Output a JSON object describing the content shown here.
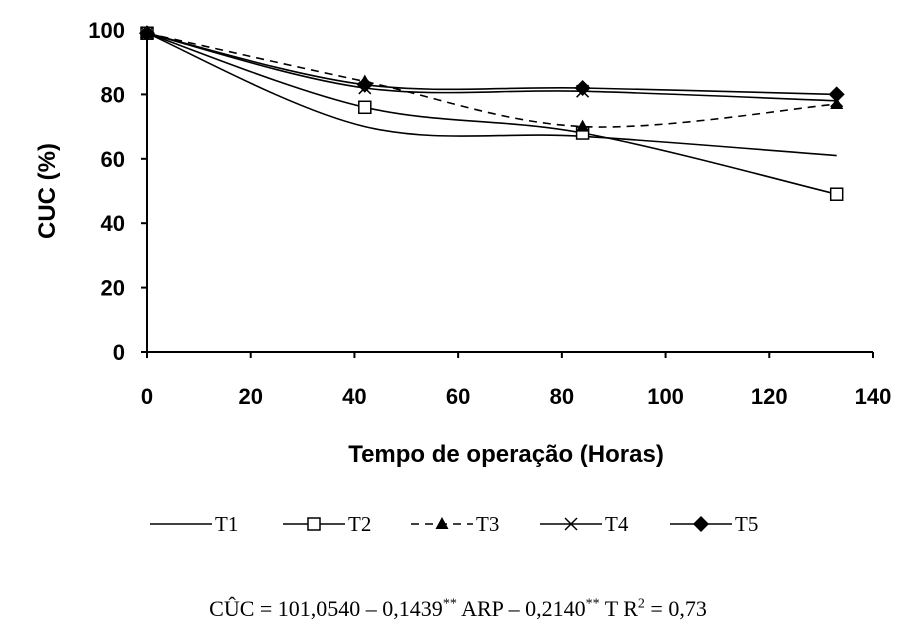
{
  "chart_data": {
    "type": "line",
    "title": "",
    "xlabel": "Tempo de operação (Horas)",
    "ylabel": "CUC (%)",
    "xlim": [
      0,
      140
    ],
    "ylim": [
      0,
      100
    ],
    "xticks": [
      0,
      20,
      40,
      60,
      80,
      100,
      120,
      140
    ],
    "yticks": [
      0,
      20,
      40,
      60,
      80,
      100
    ],
    "grid": false,
    "legend_position": "bottom",
    "series": [
      {
        "name": "T1",
        "marker": "none",
        "dash": "solid",
        "x": [
          0,
          42,
          84,
          133
        ],
        "y": [
          99,
          70,
          67,
          61
        ]
      },
      {
        "name": "T2",
        "marker": "open-square",
        "dash": "solid",
        "x": [
          0,
          42,
          84,
          133
        ],
        "y": [
          99,
          76,
          68,
          49
        ]
      },
      {
        "name": "T3",
        "marker": "filled-triangle",
        "dash": "dashed",
        "x": [
          0,
          42,
          84,
          133
        ],
        "y": [
          99,
          84,
          70,
          77
        ]
      },
      {
        "name": "T4",
        "marker": "x",
        "dash": "solid",
        "x": [
          0,
          42,
          84,
          133
        ],
        "y": [
          99,
          82,
          81,
          78
        ]
      },
      {
        "name": "T5",
        "marker": "filled-diamond",
        "dash": "solid",
        "x": [
          0,
          42,
          84,
          133
        ],
        "y": [
          99,
          83,
          82,
          80
        ]
      }
    ]
  },
  "equation": {
    "lhs": "CÛC",
    "eq": " = 101,0540 – 0,1439",
    "sup1": "**",
    "mid": " ARP – 0,2140",
    "sup2": "**",
    "end": " T   R",
    "sup3": "2",
    "tail": " = 0,73"
  }
}
